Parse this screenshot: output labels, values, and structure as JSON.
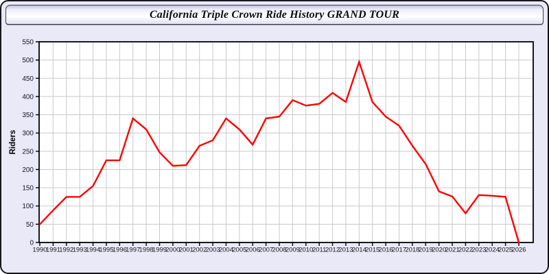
{
  "window": {
    "title": "California Triple Crown Ride History GRAND TOUR"
  },
  "chart_data": {
    "type": "line",
    "title": "California Triple Crown Ride History GRAND TOUR",
    "x": [
      1990,
      1991,
      1992,
      1993,
      1994,
      1995,
      1996,
      1997,
      1998,
      1999,
      2000,
      2001,
      2002,
      2003,
      2004,
      2005,
      2006,
      2007,
      2008,
      2009,
      2010,
      2011,
      2012,
      2013,
      2014,
      2015,
      2016,
      2017,
      2018,
      2019,
      2020,
      2021,
      2022,
      2023,
      2024,
      2025,
      2026
    ],
    "series": [
      {
        "name": "Riders",
        "values": [
          50,
          88,
          125,
          125,
          155,
          225,
          225,
          340,
          310,
          247,
          210,
          212,
          265,
          280,
          340,
          310,
          268,
          340,
          345,
          390,
          375,
          380,
          410,
          385,
          495,
          385,
          345,
          320,
          265,
          215,
          140,
          126,
          80,
          130,
          128,
          125,
          0
        ]
      }
    ],
    "xlabel": "",
    "ylabel": "Riders",
    "ylim": [
      0,
      550
    ],
    "ytick_step": 50,
    "grid": true,
    "legend_position": "none",
    "line_color": "#ff0000",
    "plot_background": "#ffffff",
    "grid_color": "#c9c9c9",
    "axis_color": "#000000",
    "label_color": "#16161e",
    "frame_background": "#e9e9f7"
  }
}
